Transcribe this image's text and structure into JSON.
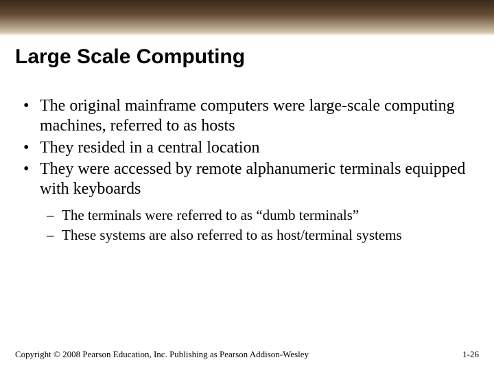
{
  "colors": {
    "background": "#ffffff",
    "text": "#000000",
    "banner_top": "#3a2a1a",
    "banner_mid": "#624a32",
    "banner_fade": "#d0c0a8"
  },
  "title": "Large Scale Computing",
  "bullets": [
    "The original mainframe computers were large-scale computing machines, referred to as hosts",
    "They resided in a central location",
    "They were accessed by remote alphanumeric terminals equipped with keyboards"
  ],
  "subbullets": [
    "The terminals were referred to as “dumb terminals”",
    "These systems are also referred to as host/terminal systems"
  ],
  "footer": {
    "copyright": "Copyright © 2008 Pearson Education, Inc. Publishing as Pearson Addison-Wesley",
    "page": "1-26"
  }
}
